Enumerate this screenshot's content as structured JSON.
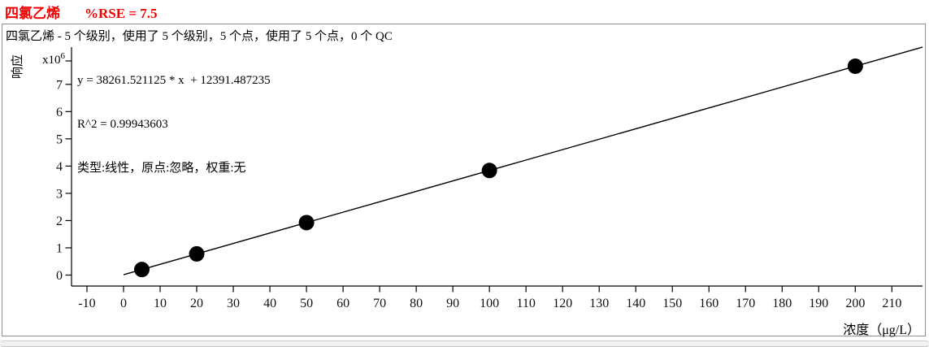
{
  "header": {
    "compound": "四氯乙烯",
    "rse": "%RSE = 7.5",
    "title_color": "#f00000"
  },
  "summary": "四氯乙烯 - 5 个级别，使用了 5 个级别，5 个点，使用了 5 个点，0 个 QC",
  "equation": {
    "line1": "y = 38261.521125 * x  + 12391.487235",
    "line2": "R^2 = 0.99943603",
    "line3": "类型:线性，原点:忽略，权重:无"
  },
  "chart_data": {
    "type": "scatter",
    "title": "四氯乙烯 %RSE = 7.5",
    "subtitle": "四氯乙烯 - 5 个级别，使用了 5 个级别，5 个点，使用了 5 个点，0 个 QC",
    "x_label": "浓度（μg/L）",
    "y_label": "响应",
    "y_scale": {
      "base": "x10",
      "exponent": "6"
    },
    "x_ticks": [
      -10,
      0,
      10,
      20,
      30,
      40,
      50,
      60,
      70,
      80,
      90,
      100,
      110,
      120,
      130,
      140,
      150,
      160,
      170,
      180,
      190,
      200,
      210
    ],
    "y_ticks": [
      0,
      1,
      2,
      3,
      4,
      5,
      6,
      7
    ],
    "xlim": [
      -14.2,
      218.4
    ],
    "ylim_millions": [
      -0.4,
      8.07
    ],
    "grid": false,
    "legend": false,
    "points": {
      "concentrations": [
        5,
        20,
        50,
        100,
        200
      ],
      "responses": [
        203699,
        777622,
        1925468,
        3838544,
        7664696
      ]
    },
    "fit": {
      "slope": 38261.521125,
      "intercept": 12391.487235,
      "r2": 0.99943603,
      "rse_percent": 7.5,
      "type_label": "线性",
      "origin_label": "忽略",
      "weight_label": "无",
      "levels": 5,
      "levels_used": 5,
      "points_count": 5,
      "points_used": 5,
      "qc_count": 0
    },
    "marker": {
      "shape": "circle",
      "color": "#000000",
      "radius_px": 9.5
    },
    "line_color": "#000000"
  }
}
